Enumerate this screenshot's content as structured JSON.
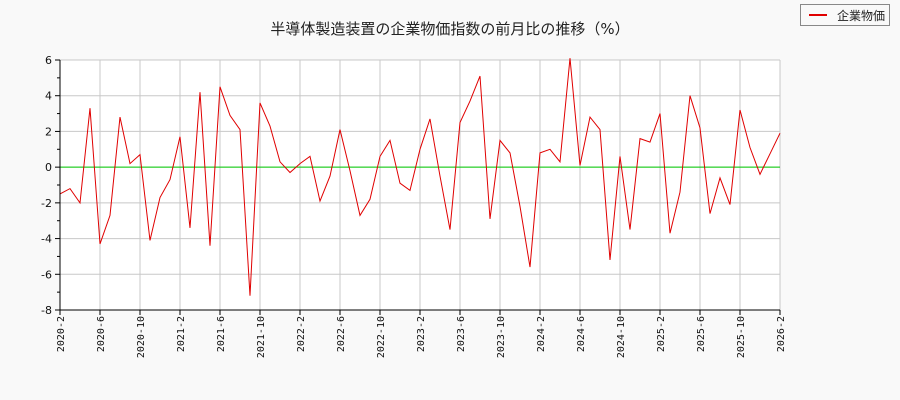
{
  "chart_data": {
    "type": "line",
    "title": "半導体製造装置の企業物価指数の前月比の推移（%）",
    "xlabel": "",
    "ylabel": "",
    "ylim": [
      -8,
      6
    ],
    "yticks": [
      6,
      4,
      2,
      0,
      -2,
      -4,
      -6,
      -8
    ],
    "grid": true,
    "legend_position": "top-right",
    "x_tick_labels": [
      "2020-2",
      "2020-6",
      "2020-10",
      "2021-2",
      "2021-6",
      "2021-10",
      "2022-2",
      "2022-6",
      "2022-10",
      "2023-2",
      "2023-6",
      "2023-10",
      "2024-2",
      "2024-6",
      "2024-10",
      "2025-2",
      "2025-6",
      "2025-10",
      "2026-2"
    ],
    "x": [
      "2020-2",
      "2020-3",
      "2020-4",
      "2020-5",
      "2020-6",
      "2020-7",
      "2020-8",
      "2020-9",
      "2020-10",
      "2020-11",
      "2020-12",
      "2021-1",
      "2021-2",
      "2021-3",
      "2021-4",
      "2021-5",
      "2021-6",
      "2021-7",
      "2021-8",
      "2021-9",
      "2021-10",
      "2021-11",
      "2021-12",
      "2022-1",
      "2022-2",
      "2022-3",
      "2022-4",
      "2022-5",
      "2022-6",
      "2022-7",
      "2022-8",
      "2022-9",
      "2022-10",
      "2022-11",
      "2022-12",
      "2023-1",
      "2023-2",
      "2023-3",
      "2023-4",
      "2023-5",
      "2023-6",
      "2023-7",
      "2023-8",
      "2023-9",
      "2023-10",
      "2023-11",
      "2023-12",
      "2024-1",
      "2024-2",
      "2024-3",
      "2024-4",
      "2024-5",
      "2024-6",
      "2024-7",
      "2024-8",
      "2024-9",
      "2024-10",
      "2024-11",
      "2024-12",
      "2025-1",
      "2025-2",
      "2025-3",
      "2025-4",
      "2025-5",
      "2025-6",
      "2025-7",
      "2025-8",
      "2025-9",
      "2025-10",
      "2025-11",
      "2025-12",
      "2026-1",
      "2026-2"
    ],
    "series": [
      {
        "name": "企業物価",
        "color": "#e00000",
        "values": [
          -1.5,
          -1.2,
          -2.0,
          3.3,
          -4.3,
          -2.7,
          2.8,
          0.2,
          0.7,
          -4.1,
          -1.7,
          -0.7,
          1.7,
          -3.4,
          4.2,
          -4.4,
          4.5,
          2.9,
          2.1,
          -7.2,
          3.6,
          2.3,
          0.3,
          -0.3,
          0.2,
          0.6,
          -1.9,
          -0.5,
          2.1,
          -0.2,
          -2.7,
          -1.8,
          0.6,
          1.5,
          -0.9,
          -1.3,
          1.0,
          2.7,
          -0.5,
          -3.5,
          2.5,
          3.7,
          5.1,
          -2.9,
          1.5,
          0.8,
          -2.2,
          -5.6,
          0.8,
          1.0,
          0.3,
          6.1,
          0.1,
          2.8,
          2.1,
          -5.2,
          0.6,
          -3.5,
          1.6,
          1.4,
          3.0,
          -3.7,
          -1.4,
          4.0,
          2.2,
          -2.6,
          -0.6,
          -2.1,
          3.2,
          1.1,
          -0.4,
          0.75,
          1.9
        ]
      }
    ],
    "zero_line_color": "#00cc00"
  },
  "legend": {
    "label": "企業物価"
  }
}
